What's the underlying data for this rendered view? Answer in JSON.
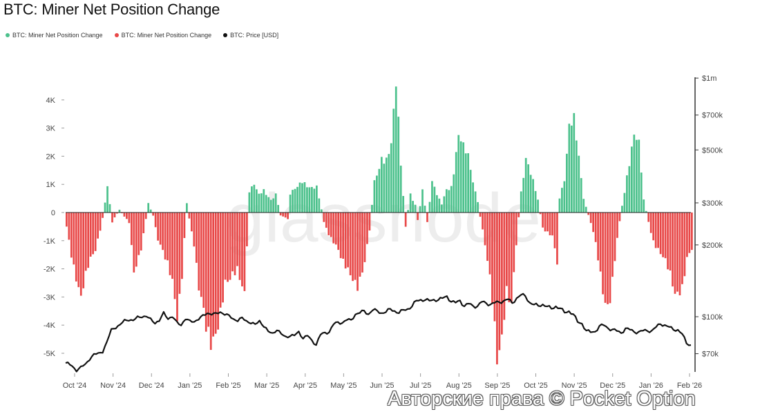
{
  "chart_data": {
    "type": "bar",
    "title": "BTC: Miner Net Position Change",
    "watermark": "glassnode",
    "legend": [
      {
        "label": "BTC: Miner Net Position Change",
        "color": "#4cc18c"
      },
      {
        "label": "BTC: Miner Net Position Change",
        "color": "#e84848"
      },
      {
        "label": "BTC: Price [USD]",
        "color": "#111111"
      }
    ],
    "x_ticks": [
      "Oct '24",
      "Nov '24",
      "Dec '24",
      "Jan '25",
      "Feb '25",
      "Mar '25",
      "Apr '25",
      "May '25",
      "Jun '25",
      "Jul '25",
      "Aug '25",
      "Sep '25",
      "Oct '25",
      "Nov '25",
      "Dec '25",
      "Jan '26",
      "Feb '26"
    ],
    "y_left_ticks": [
      "4K",
      "3K",
      "2K",
      "1K",
      "0",
      "-1K",
      "-2K",
      "-3K",
      "-4K",
      "-5K"
    ],
    "y_left_values": [
      4000,
      3000,
      2000,
      1000,
      0,
      -1000,
      -2000,
      -3000,
      -4000,
      -5000
    ],
    "y_left_range": [
      -5500,
      4400
    ],
    "y_right_ticks": [
      "$1m",
      "$700k",
      "$500k",
      "$300k",
      "$200k",
      "$100k",
      "$70k"
    ],
    "y_right_values": [
      1000000,
      700000,
      500000,
      300000,
      200000,
      100000,
      70000
    ],
    "y_right_scale": "log",
    "bar_colors": {
      "positive": "#4cc18c",
      "negative": "#e84848",
      "positive_edge": "#2f9e6c",
      "negative_edge": "#c93030"
    },
    "price_color": "#111111",
    "net_position_anchors": [
      [
        0,
        -500
      ],
      [
        2,
        -1400
      ],
      [
        6,
        -2800
      ],
      [
        9,
        -2000
      ],
      [
        12,
        -1500
      ],
      [
        15,
        -200
      ],
      [
        17,
        850
      ],
      [
        19,
        -300
      ],
      [
        22,
        100
      ],
      [
        26,
        -400
      ],
      [
        28,
        -2300
      ],
      [
        31,
        -1200
      ],
      [
        34,
        300
      ],
      [
        36,
        -100
      ],
      [
        38,
        -1000
      ],
      [
        41,
        -1800
      ],
      [
        44,
        -2500
      ],
      [
        46,
        -3500
      ],
      [
        48,
        -2000
      ],
      [
        50,
        300
      ],
      [
        53,
        -1200
      ],
      [
        55,
        -3000
      ],
      [
        58,
        -4300
      ],
      [
        60,
        -4500
      ],
      [
        63,
        -3600
      ],
      [
        66,
        -2400
      ],
      [
        68,
        -2500
      ],
      [
        71,
        -2300
      ],
      [
        73,
        -2800
      ],
      [
        74,
        -2900
      ],
      [
        76,
        700
      ],
      [
        78,
        900
      ],
      [
        80,
        600
      ],
      [
        82,
        800
      ],
      [
        85,
        500
      ],
      [
        87,
        700
      ],
      [
        89,
        -100
      ],
      [
        92,
        -200
      ],
      [
        93,
        600
      ],
      [
        96,
        900
      ],
      [
        98,
        1200
      ],
      [
        101,
        1000
      ],
      [
        104,
        900
      ],
      [
        107,
        -300
      ],
      [
        109,
        -700
      ],
      [
        112,
        -1200
      ],
      [
        115,
        -2000
      ],
      [
        118,
        -2300
      ],
      [
        121,
        -2400
      ],
      [
        124,
        -1600
      ],
      [
        126,
        -600
      ],
      [
        128,
        1200
      ],
      [
        131,
        2100
      ],
      [
        133,
        1900
      ],
      [
        135,
        2300
      ],
      [
        137,
        4200
      ],
      [
        139,
        1600
      ],
      [
        141,
        -500
      ],
      [
        143,
        700
      ],
      [
        145,
        300
      ],
      [
        146,
        -300
      ],
      [
        148,
        800
      ],
      [
        150,
        -300
      ],
      [
        152,
        1000
      ],
      [
        154,
        600
      ],
      [
        156,
        300
      ],
      [
        158,
        900
      ],
      [
        160,
        1000
      ],
      [
        163,
        2800
      ],
      [
        165,
        2200
      ],
      [
        167,
        1800
      ],
      [
        169,
        1000
      ],
      [
        171,
        400
      ],
      [
        173,
        -700
      ],
      [
        175,
        -1900
      ],
      [
        177,
        -3200
      ],
      [
        178,
        -4100
      ],
      [
        179,
        -5000
      ],
      [
        181,
        -4000
      ],
      [
        183,
        -2500
      ],
      [
        185,
        -3200
      ],
      [
        187,
        -1200
      ],
      [
        189,
        800
      ],
      [
        191,
        2100
      ],
      [
        193,
        1400
      ],
      [
        196,
        400
      ],
      [
        198,
        -500
      ],
      [
        200,
        -700
      ],
      [
        202,
        -900
      ],
      [
        204,
        -2000
      ],
      [
        205,
        600
      ],
      [
        207,
        1200
      ],
      [
        209,
        2900
      ],
      [
        211,
        3000
      ],
      [
        213,
        1800
      ],
      [
        215,
        500
      ],
      [
        218,
        -400
      ],
      [
        220,
        -1200
      ],
      [
        222,
        -2300
      ],
      [
        224,
        -3100
      ],
      [
        226,
        -2800
      ],
      [
        228,
        -1500
      ],
      [
        230,
        -300
      ],
      [
        232,
        800
      ],
      [
        234,
        2000
      ],
      [
        236,
        3000
      ],
      [
        238,
        2400
      ],
      [
        240,
        400
      ],
      [
        242,
        -300
      ],
      [
        244,
        -1000
      ],
      [
        247,
        -1600
      ],
      [
        250,
        -2100
      ],
      [
        253,
        -2800
      ],
      [
        256,
        -2400
      ],
      [
        258,
        -1500
      ],
      [
        260,
        -1300
      ]
    ],
    "btc_price_anchors": [
      [
        0,
        64000
      ],
      [
        3,
        62000
      ],
      [
        5,
        60000
      ],
      [
        7,
        61000
      ],
      [
        9,
        63000
      ],
      [
        11,
        67000
      ],
      [
        13,
        69000
      ],
      [
        15,
        70000
      ],
      [
        17,
        72000
      ],
      [
        19,
        78000
      ],
      [
        21,
        88000
      ],
      [
        23,
        91000
      ],
      [
        25,
        92000
      ],
      [
        27,
        96000
      ],
      [
        29,
        98000
      ],
      [
        31,
        96000
      ],
      [
        33,
        99000
      ],
      [
        35,
        101000
      ],
      [
        37,
        100000
      ],
      [
        39,
        97000
      ],
      [
        41,
        95000
      ],
      [
        43,
        96000
      ],
      [
        45,
        103000
      ],
      [
        47,
        99000
      ],
      [
        49,
        100000
      ],
      [
        51,
        94000
      ],
      [
        53,
        93000
      ],
      [
        55,
        98000
      ],
      [
        57,
        95000
      ],
      [
        59,
        96000
      ],
      [
        61,
        98000
      ],
      [
        63,
        100000
      ],
      [
        65,
        104000
      ],
      [
        67,
        103000
      ],
      [
        69,
        102000
      ],
      [
        71,
        105000
      ],
      [
        73,
        103000
      ],
      [
        75,
        100000
      ],
      [
        77,
        98000
      ],
      [
        79,
        97000
      ],
      [
        81,
        98000
      ],
      [
        83,
        96000
      ],
      [
        85,
        95000
      ],
      [
        87,
        92000
      ],
      [
        89,
        96000
      ],
      [
        91,
        92000
      ],
      [
        93,
        86000
      ],
      [
        95,
        85000
      ],
      [
        97,
        89000
      ],
      [
        99,
        84000
      ],
      [
        101,
        82000
      ],
      [
        103,
        84000
      ],
      [
        105,
        83000
      ],
      [
        107,
        86000
      ],
      [
        109,
        82000
      ],
      [
        111,
        83000
      ],
      [
        113,
        79000
      ],
      [
        115,
        77000
      ],
      [
        117,
        84000
      ],
      [
        119,
        85000
      ],
      [
        121,
        87000
      ],
      [
        123,
        93000
      ],
      [
        125,
        94000
      ],
      [
        127,
        95000
      ],
      [
        129,
        97000
      ],
      [
        131,
        96000
      ],
      [
        133,
        103000
      ],
      [
        135,
        104000
      ],
      [
        137,
        105000
      ],
      [
        139,
        103000
      ],
      [
        141,
        107000
      ],
      [
        143,
        105000
      ],
      [
        145,
        104000
      ],
      [
        147,
        105000
      ],
      [
        149,
        107000
      ],
      [
        151,
        106000
      ],
      [
        153,
        104000
      ],
      [
        155,
        106000
      ],
      [
        157,
        108000
      ],
      [
        159,
        111000
      ],
      [
        161,
        116000
      ],
      [
        163,
        118000
      ],
      [
        165,
        118000
      ],
      [
        167,
        116000
      ],
      [
        169,
        118000
      ],
      [
        171,
        118000
      ],
      [
        173,
        119000
      ],
      [
        175,
        122000
      ],
      [
        177,
        116000
      ],
      [
        179,
        114000
      ],
      [
        181,
        117000
      ],
      [
        183,
        111000
      ],
      [
        185,
        113000
      ],
      [
        187,
        111000
      ],
      [
        189,
        111000
      ],
      [
        191,
        115000
      ],
      [
        193,
        114000
      ],
      [
        195,
        113000
      ],
      [
        197,
        114000
      ],
      [
        199,
        115000
      ],
      [
        201,
        117000
      ],
      [
        203,
        118000
      ],
      [
        205,
        114000
      ],
      [
        207,
        120000
      ],
      [
        209,
        123000
      ],
      [
        211,
        122000
      ],
      [
        213,
        115000
      ],
      [
        215,
        112000
      ],
      [
        217,
        111000
      ],
      [
        219,
        113000
      ],
      [
        221,
        110000
      ],
      [
        223,
        108000
      ],
      [
        225,
        111000
      ],
      [
        227,
        108000
      ],
      [
        229,
        104000
      ],
      [
        231,
        106000
      ],
      [
        233,
        102000
      ],
      [
        235,
        95000
      ],
      [
        237,
        94000
      ],
      [
        239,
        87000
      ],
      [
        241,
        86000
      ],
      [
        243,
        87000
      ],
      [
        245,
        91000
      ],
      [
        247,
        92000
      ],
      [
        249,
        90000
      ],
      [
        251,
        88000
      ],
      [
        253,
        87000
      ],
      [
        255,
        86000
      ],
      [
        257,
        89000
      ],
      [
        259,
        88000
      ],
      [
        261,
        87000
      ],
      [
        263,
        86000
      ],
      [
        265,
        87000
      ],
      [
        267,
        88000
      ],
      [
        269,
        87000
      ],
      [
        271,
        90000
      ],
      [
        273,
        94000
      ],
      [
        275,
        92000
      ],
      [
        277,
        90000
      ],
      [
        279,
        89000
      ],
      [
        281,
        88000
      ],
      [
        283,
        84000
      ],
      [
        285,
        78000
      ],
      [
        287,
        76000
      ]
    ]
  },
  "copyright": "Авторские права © Pocket Option"
}
